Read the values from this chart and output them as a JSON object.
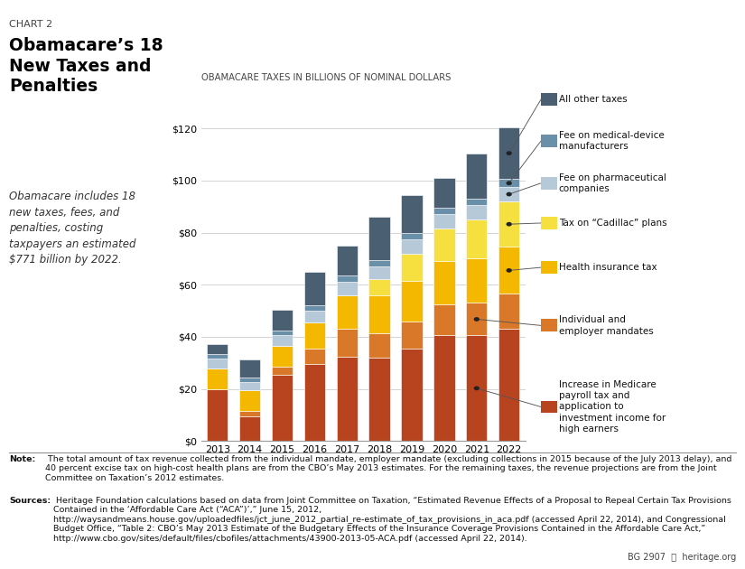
{
  "years": [
    2013,
    2014,
    2015,
    2016,
    2017,
    2018,
    2019,
    2020,
    2021,
    2022
  ],
  "chart_label": "CHART 2",
  "title": "Obamacare’s 18\nNew Taxes and\nPenalties",
  "subtitle": "Obamacare includes 18\nnew taxes, fees, and\npenalties, costing\ntaxpayers an estimated\n$771 billion by 2022.",
  "axis_title": "OBAMACARE TAXES IN BILLIONS OF NOMINAL DOLLARS",
  "note_bold": "Note:",
  "note_rest": " The total amount of tax revenue collected from the individual mandate, employer mandate (excluding collections in 2015 because of the July 2013 delay), and 40 percent excise tax on high-cost health plans are from the CBO’s May 2013 estimates. For the remaining taxes, the revenue projections are from the Joint Committee on Taxation’s 2012 estimates.",
  "sources_bold": "Sources:",
  "sources_rest": " Heritage Foundation calculations based on data from Joint Committee on Taxation, “Estimated Revenue Effects of a Proposal to Repeal Certain Tax Provisions Contained in the ‘Affordable Care Act (“ACA”)’,” June 15, 2012, http://waysandmeans.house.gov/uploadedfiles/jct_june_2012_partial_re-estimate_of_tax_provisions_in_aca.pdf (accessed April 22, 2014), and Congressional Budget Office, “Table 2: CBO’s May 2013 Estimate of the Budgetary Effects of the Insurance Coverage Provisions Contained in the Affordable Care Act,” http://www.cbo.gov/sites/default/files/cbofiles/attachments/43900-2013-05-ACA.pdf (accessed April 22, 2014).",
  "bg_label": "BG 2907",
  "layers": [
    {
      "name": "Increase in Medicare\npayroll tax and\napplication to\ninvestment income for\nhigh earners",
      "color": "#B8431F",
      "values": [
        20.0,
        9.5,
        25.5,
        29.5,
        32.5,
        32.0,
        35.5,
        40.5,
        40.5,
        43.0
      ]
    },
    {
      "name": "Individual and\nemployer mandates",
      "color": "#D97828",
      "values": [
        0.0,
        2.0,
        3.0,
        6.0,
        10.5,
        9.5,
        10.5,
        12.0,
        12.5,
        13.5
      ]
    },
    {
      "name": "Health insurance tax",
      "color": "#F5B800",
      "values": [
        8.0,
        8.0,
        8.0,
        10.0,
        13.0,
        14.5,
        15.5,
        16.5,
        17.0,
        18.0
      ]
    },
    {
      "name": "Tax on “Cadillac” plans",
      "color": "#F5E040",
      "values": [
        0.0,
        0.0,
        0.0,
        0.0,
        0.0,
        6.0,
        10.5,
        12.5,
        15.0,
        17.5
      ]
    },
    {
      "name": "Fee on pharmaceutical\ncompanies",
      "color": "#B5C9D8",
      "values": [
        3.5,
        3.0,
        4.0,
        4.5,
        5.0,
        5.0,
        5.5,
        5.5,
        5.5,
        5.5
      ]
    },
    {
      "name": "Fee on medical-device\nmanufacturers",
      "color": "#6A8FA8",
      "values": [
        1.8,
        1.8,
        1.8,
        2.0,
        2.5,
        2.5,
        2.5,
        2.5,
        2.5,
        3.0
      ]
    },
    {
      "name": "All other taxes",
      "color": "#4A5F72",
      "values": [
        4.0,
        7.0,
        8.0,
        13.0,
        11.5,
        16.5,
        14.5,
        11.5,
        17.5,
        20.0
      ]
    }
  ],
  "ylim": [
    0,
    130
  ],
  "yticks": [
    0,
    20,
    40,
    60,
    80,
    100,
    120
  ],
  "bg_color": "#FFFFFF",
  "legend_order": [
    6,
    5,
    4,
    3,
    2,
    1,
    0
  ]
}
